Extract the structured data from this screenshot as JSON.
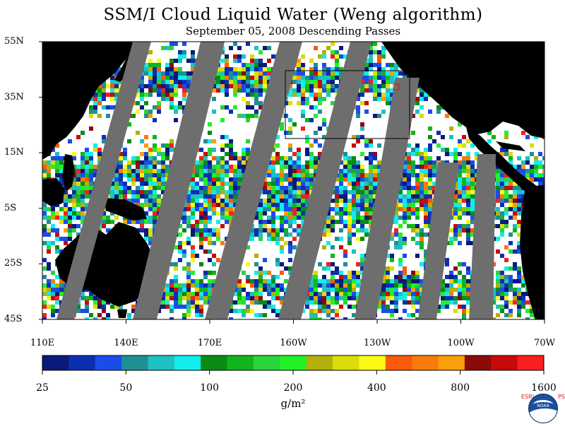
{
  "title": "SSM/I Cloud Liquid Water (Weng algorithm)",
  "subtitle": "September 05, 2008  Descending Passes",
  "lat_labels": [
    "55N",
    "35N",
    "15N",
    "5S",
    "25S",
    "45S"
  ],
  "lon_labels": [
    "110E",
    "140E",
    "170E",
    "160W",
    "130W",
    "100W",
    "70W"
  ],
  "colorbar": {
    "tick_labels": [
      "25",
      "50",
      "100",
      "200",
      "400",
      "800",
      "1600"
    ],
    "units": "g/m²",
    "colors": [
      "#0a1a7a",
      "#0b2fb0",
      "#1a4de8",
      "#1f8f94",
      "#1fc0c0",
      "#12ecec",
      "#0a8c14",
      "#12b41e",
      "#2ad43a",
      "#22f028",
      "#b4b00a",
      "#dcdc0a",
      "#fafa14",
      "#fa5a0a",
      "#fa7a0a",
      "#fa9e0a",
      "#8c0a0a",
      "#c80a0a",
      "#fa1e1e"
    ]
  },
  "logo": {
    "left_text": "ESRL",
    "right_text": "PSD",
    "center_text": "NOAA"
  },
  "colors": {
    "land": "#000000",
    "no_data_swath": "#6e6e6e",
    "clear_ocean": "#ffffff",
    "box_outline": "#000000"
  }
}
